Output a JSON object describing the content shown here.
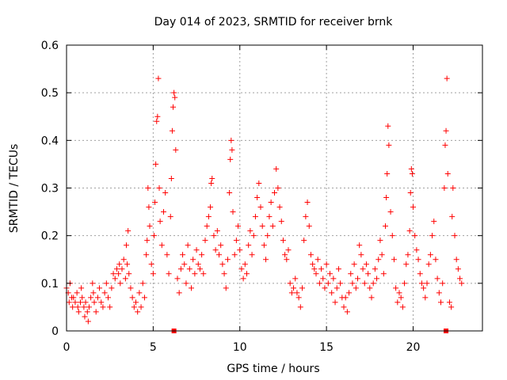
{
  "chart_data": {
    "type": "scatter",
    "title": "Day 014 of 2023, SRMTID for receiver brnk",
    "xlabel": "GPS time / hours",
    "ylabel": "SRMTID / TECUs",
    "xlim": [
      0,
      24
    ],
    "ylim": [
      0,
      0.6
    ],
    "xticks": [
      0,
      5,
      10,
      15,
      20
    ],
    "xtick_labels": [
      "0",
      "5",
      "10",
      "15",
      "20"
    ],
    "yticks": [
      0,
      0.1,
      0.2,
      0.3,
      0.4,
      0.5,
      0.6
    ],
    "ytick_labels": [
      "0",
      "0.1",
      "0.2",
      "0.3",
      "0.4",
      "0.5",
      "0.6"
    ],
    "grid": true,
    "marker_color": "#ff0000",
    "series": [
      {
        "name": "SRMTID",
        "marker": "plus",
        "points": [
          [
            0.0,
            0.09
          ],
          [
            0.1,
            0.08
          ],
          [
            0.15,
            0.06
          ],
          [
            0.2,
            0.1
          ],
          [
            0.3,
            0.07
          ],
          [
            0.35,
            0.05
          ],
          [
            0.4,
            0.07
          ],
          [
            0.5,
            0.06
          ],
          [
            0.6,
            0.08
          ],
          [
            0.65,
            0.05
          ],
          [
            0.7,
            0.04
          ],
          [
            0.8,
            0.06
          ],
          [
            0.85,
            0.09
          ],
          [
            0.9,
            0.07
          ],
          [
            1.0,
            0.05
          ],
          [
            1.05,
            0.03
          ],
          [
            1.1,
            0.06
          ],
          [
            1.2,
            0.04
          ],
          [
            1.25,
            0.02
          ],
          [
            1.3,
            0.05
          ],
          [
            1.4,
            0.07
          ],
          [
            1.5,
            0.1
          ],
          [
            1.55,
            0.08
          ],
          [
            1.6,
            0.06
          ],
          [
            1.7,
            0.04
          ],
          [
            1.8,
            0.07
          ],
          [
            1.9,
            0.09
          ],
          [
            2.0,
            0.06
          ],
          [
            2.1,
            0.05
          ],
          [
            2.2,
            0.08
          ],
          [
            2.3,
            0.1
          ],
          [
            2.4,
            0.07
          ],
          [
            2.5,
            0.05
          ],
          [
            2.6,
            0.09
          ],
          [
            2.7,
            0.12
          ],
          [
            2.8,
            0.11
          ],
          [
            2.9,
            0.13
          ],
          [
            3.0,
            0.12
          ],
          [
            3.05,
            0.14
          ],
          [
            3.1,
            0.1
          ],
          [
            3.2,
            0.13
          ],
          [
            3.3,
            0.15
          ],
          [
            3.4,
            0.11
          ],
          [
            3.45,
            0.18
          ],
          [
            3.5,
            0.14
          ],
          [
            3.55,
            0.21
          ],
          [
            3.6,
            0.12
          ],
          [
            3.7,
            0.09
          ],
          [
            3.8,
            0.07
          ],
          [
            3.9,
            0.05
          ],
          [
            4.0,
            0.06
          ],
          [
            4.1,
            0.04
          ],
          [
            4.2,
            0.08
          ],
          [
            4.3,
            0.05
          ],
          [
            4.4,
            0.1
          ],
          [
            4.5,
            0.07
          ],
          [
            4.6,
            0.16
          ],
          [
            4.65,
            0.19
          ],
          [
            4.7,
            0.3
          ],
          [
            4.75,
            0.26
          ],
          [
            4.8,
            0.22
          ],
          [
            4.9,
            0.14
          ],
          [
            5.0,
            0.12
          ],
          [
            5.05,
            0.2
          ],
          [
            5.1,
            0.27
          ],
          [
            5.15,
            0.35
          ],
          [
            5.2,
            0.44
          ],
          [
            5.25,
            0.45
          ],
          [
            5.3,
            0.53
          ],
          [
            5.35,
            0.3
          ],
          [
            5.4,
            0.23
          ],
          [
            5.5,
            0.18
          ],
          [
            5.6,
            0.25
          ],
          [
            5.7,
            0.29
          ],
          [
            5.8,
            0.16
          ],
          [
            5.9,
            0.12
          ],
          [
            6.0,
            0.24
          ],
          [
            6.05,
            0.32
          ],
          [
            6.1,
            0.42
          ],
          [
            6.15,
            0.47
          ],
          [
            6.2,
            0.5
          ],
          [
            6.25,
            0.49
          ],
          [
            6.3,
            0.38
          ],
          [
            6.4,
            0.11
          ],
          [
            6.5,
            0.08
          ],
          [
            6.6,
            0.13
          ],
          [
            6.7,
            0.16
          ],
          [
            6.8,
            0.14
          ],
          [
            6.9,
            0.1
          ],
          [
            7.0,
            0.18
          ],
          [
            7.1,
            0.13
          ],
          [
            7.2,
            0.09
          ],
          [
            7.3,
            0.15
          ],
          [
            7.4,
            0.12
          ],
          [
            7.5,
            0.17
          ],
          [
            7.6,
            0.14
          ],
          [
            7.7,
            0.13
          ],
          [
            7.8,
            0.16
          ],
          [
            7.9,
            0.12
          ],
          [
            8.0,
            0.19
          ],
          [
            8.1,
            0.22
          ],
          [
            8.2,
            0.24
          ],
          [
            8.3,
            0.26
          ],
          [
            8.35,
            0.31
          ],
          [
            8.4,
            0.32
          ],
          [
            8.5,
            0.2
          ],
          [
            8.6,
            0.17
          ],
          [
            8.7,
            0.21
          ],
          [
            8.8,
            0.16
          ],
          [
            8.9,
            0.18
          ],
          [
            9.0,
            0.14
          ],
          [
            9.1,
            0.12
          ],
          [
            9.2,
            0.09
          ],
          [
            9.3,
            0.15
          ],
          [
            9.4,
            0.29
          ],
          [
            9.45,
            0.36
          ],
          [
            9.5,
            0.4
          ],
          [
            9.55,
            0.38
          ],
          [
            9.6,
            0.25
          ],
          [
            9.7,
            0.16
          ],
          [
            9.8,
            0.19
          ],
          [
            9.9,
            0.22
          ],
          [
            10.0,
            0.17
          ],
          [
            10.1,
            0.13
          ],
          [
            10.2,
            0.11
          ],
          [
            10.3,
            0.14
          ],
          [
            10.4,
            0.12
          ],
          [
            10.5,
            0.18
          ],
          [
            10.6,
            0.21
          ],
          [
            10.7,
            0.16
          ],
          [
            10.8,
            0.2
          ],
          [
            10.9,
            0.24
          ],
          [
            11.0,
            0.28
          ],
          [
            11.1,
            0.31
          ],
          [
            11.2,
            0.26
          ],
          [
            11.3,
            0.22
          ],
          [
            11.4,
            0.18
          ],
          [
            11.5,
            0.15
          ],
          [
            11.6,
            0.2
          ],
          [
            11.7,
            0.24
          ],
          [
            11.8,
            0.27
          ],
          [
            11.9,
            0.22
          ],
          [
            12.0,
            0.29
          ],
          [
            12.1,
            0.34
          ],
          [
            12.2,
            0.3
          ],
          [
            12.3,
            0.26
          ],
          [
            12.4,
            0.23
          ],
          [
            12.5,
            0.19
          ],
          [
            12.6,
            0.16
          ],
          [
            12.7,
            0.15
          ],
          [
            12.8,
            0.17
          ],
          [
            12.9,
            0.1
          ],
          [
            13.0,
            0.08
          ],
          [
            13.1,
            0.09
          ],
          [
            13.2,
            0.11
          ],
          [
            13.3,
            0.08
          ],
          [
            13.4,
            0.07
          ],
          [
            13.5,
            0.05
          ],
          [
            13.6,
            0.09
          ],
          [
            13.7,
            0.19
          ],
          [
            13.8,
            0.24
          ],
          [
            13.9,
            0.27
          ],
          [
            14.0,
            0.22
          ],
          [
            14.1,
            0.16
          ],
          [
            14.2,
            0.14
          ],
          [
            14.3,
            0.13
          ],
          [
            14.4,
            0.12
          ],
          [
            14.5,
            0.15
          ],
          [
            14.6,
            0.1
          ],
          [
            14.7,
            0.13
          ],
          [
            14.8,
            0.11
          ],
          [
            14.9,
            0.09
          ],
          [
            15.0,
            0.14
          ],
          [
            15.1,
            0.1
          ],
          [
            15.2,
            0.12
          ],
          [
            15.3,
            0.08
          ],
          [
            15.4,
            0.11
          ],
          [
            15.5,
            0.06
          ],
          [
            15.6,
            0.09
          ],
          [
            15.7,
            0.13
          ],
          [
            15.8,
            0.1
          ],
          [
            15.9,
            0.07
          ],
          [
            16.0,
            0.05
          ],
          [
            16.1,
            0.07
          ],
          [
            16.2,
            0.04
          ],
          [
            16.3,
            0.08
          ],
          [
            16.4,
            0.12
          ],
          [
            16.5,
            0.1
          ],
          [
            16.6,
            0.14
          ],
          [
            16.7,
            0.09
          ],
          [
            16.8,
            0.11
          ],
          [
            16.9,
            0.18
          ],
          [
            17.0,
            0.16
          ],
          [
            17.1,
            0.13
          ],
          [
            17.2,
            0.1
          ],
          [
            17.3,
            0.14
          ],
          [
            17.4,
            0.12
          ],
          [
            17.5,
            0.09
          ],
          [
            17.6,
            0.07
          ],
          [
            17.7,
            0.1
          ],
          [
            17.8,
            0.13
          ],
          [
            17.9,
            0.11
          ],
          [
            18.0,
            0.15
          ],
          [
            18.1,
            0.19
          ],
          [
            18.2,
            0.16
          ],
          [
            18.3,
            0.12
          ],
          [
            18.4,
            0.22
          ],
          [
            18.45,
            0.28
          ],
          [
            18.5,
            0.33
          ],
          [
            18.55,
            0.43
          ],
          [
            18.6,
            0.39
          ],
          [
            18.7,
            0.25
          ],
          [
            18.8,
            0.2
          ],
          [
            18.9,
            0.15
          ],
          [
            19.0,
            0.09
          ],
          [
            19.1,
            0.06
          ],
          [
            19.2,
            0.08
          ],
          [
            19.3,
            0.07
          ],
          [
            19.4,
            0.05
          ],
          [
            19.5,
            0.1
          ],
          [
            19.6,
            0.14
          ],
          [
            19.7,
            0.16
          ],
          [
            19.8,
            0.21
          ],
          [
            19.85,
            0.29
          ],
          [
            19.9,
            0.34
          ],
          [
            19.95,
            0.33
          ],
          [
            20.0,
            0.26
          ],
          [
            20.1,
            0.2
          ],
          [
            20.2,
            0.17
          ],
          [
            20.3,
            0.15
          ],
          [
            20.4,
            0.12
          ],
          [
            20.5,
            0.1
          ],
          [
            20.6,
            0.09
          ],
          [
            20.7,
            0.07
          ],
          [
            20.8,
            0.1
          ],
          [
            20.9,
            0.14
          ],
          [
            21.0,
            0.16
          ],
          [
            21.1,
            0.2
          ],
          [
            21.2,
            0.23
          ],
          [
            21.3,
            0.15
          ],
          [
            21.4,
            0.11
          ],
          [
            21.5,
            0.08
          ],
          [
            21.6,
            0.06
          ],
          [
            21.7,
            0.1
          ],
          [
            21.8,
            0.3
          ],
          [
            21.85,
            0.39
          ],
          [
            21.9,
            0.42
          ],
          [
            21.95,
            0.53
          ],
          [
            22.0,
            0.33
          ],
          [
            22.1,
            0.06
          ],
          [
            22.2,
            0.05
          ],
          [
            22.25,
            0.24
          ],
          [
            22.3,
            0.3
          ],
          [
            22.4,
            0.2
          ],
          [
            22.5,
            0.15
          ],
          [
            22.6,
            0.13
          ],
          [
            22.7,
            0.11
          ],
          [
            22.8,
            0.1
          ]
        ]
      },
      {
        "name": "baseline markers",
        "marker": "square",
        "points": [
          [
            6.2,
            0.0
          ],
          [
            21.9,
            0.0
          ]
        ]
      }
    ]
  }
}
